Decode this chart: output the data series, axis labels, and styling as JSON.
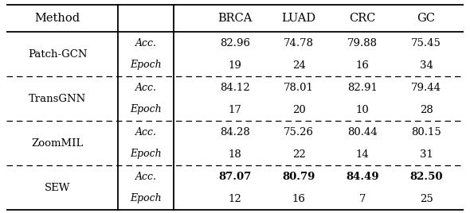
{
  "header_cols": [
    "Method",
    "",
    "BRCA",
    "LUAD",
    "CRC",
    "GC"
  ],
  "rows": [
    {
      "method": "Patch-GCN",
      "brca1": "82.96",
      "luad1": "74.78",
      "crc1": "79.88",
      "gc1": "75.45",
      "brca2": "19",
      "luad2": "24",
      "crc2": "16",
      "gc2": "34",
      "bold_acc": false
    },
    {
      "method": "TransGNN",
      "brca1": "84.12",
      "luad1": "78.01",
      "crc1": "82.91",
      "gc1": "79.44",
      "brca2": "17",
      "luad2": "20",
      "crc2": "10",
      "gc2": "28",
      "bold_acc": false
    },
    {
      "method": "ZoomMIL",
      "brca1": "84.28",
      "luad1": "75.26",
      "crc1": "80.44",
      "gc1": "80.15",
      "brca2": "18",
      "luad2": "22",
      "crc2": "14",
      "gc2": "31",
      "bold_acc": false
    },
    {
      "method": "SEW",
      "brca1": "87.07",
      "luad1": "80.79",
      "crc1": "84.49",
      "gc1": "82.50",
      "brca2": "12",
      "luad2": "16",
      "crc2": "7",
      "gc2": "25",
      "bold_acc": true
    }
  ],
  "background": "#ffffff",
  "text_color": "#000000",
  "fontsize_header": 10.5,
  "fontsize_body": 9.5,
  "fontsize_metric": 9.0
}
